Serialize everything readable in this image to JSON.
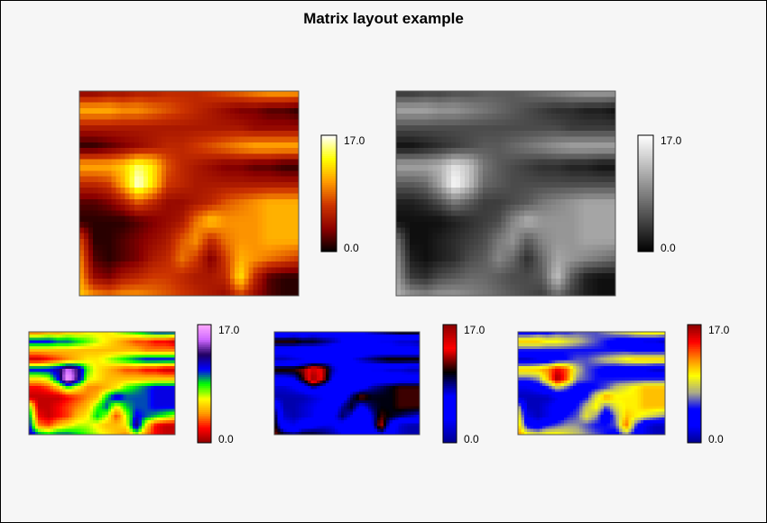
{
  "chart_data": {
    "type": "heatmap",
    "title": "Matrix layout example",
    "layout": "matrix, 2 panels top row, 3 panels bottom row",
    "value_range": [
      0,
      17
    ],
    "colorbar_ticks": [
      "17.0",
      "0.0"
    ],
    "matrix": [
      [
        3,
        3,
        4,
        4,
        5,
        5,
        6,
        6,
        6,
        7,
        8,
        9,
        10,
        11,
        11,
        11
      ],
      [
        11,
        11,
        11,
        10,
        10,
        9,
        8,
        7,
        6,
        5,
        4,
        3,
        3,
        2,
        2,
        1
      ],
      [
        5,
        5,
        5,
        5,
        5,
        5,
        5,
        5,
        5,
        5,
        5,
        5,
        4,
        4,
        4,
        4
      ],
      [
        1,
        1,
        2,
        3,
        4,
        5,
        6,
        6,
        7,
        8,
        9,
        10,
        11,
        11,
        11,
        11
      ],
      [
        11,
        11,
        11,
        12,
        15,
        13,
        8,
        6,
        5,
        4,
        3,
        3,
        2,
        2,
        1,
        1
      ],
      [
        6,
        6,
        7,
        11,
        17,
        13,
        7,
        6,
        5,
        5,
        5,
        5,
        5,
        5,
        5,
        5
      ],
      [
        2,
        2,
        3,
        5,
        8,
        6,
        4,
        4,
        5,
        6,
        8,
        9,
        10,
        11,
        11,
        11
      ],
      [
        1,
        1,
        1,
        1,
        2,
        3,
        4,
        5,
        9,
        12,
        10,
        10,
        10,
        11,
        11,
        11
      ],
      [
        8,
        1,
        1,
        2,
        3,
        4,
        5,
        8,
        10,
        6,
        9,
        10,
        10,
        11,
        11,
        11
      ],
      [
        10,
        2,
        1,
        2,
        3,
        5,
        6,
        9,
        7,
        3,
        7,
        11,
        10,
        9,
        8,
        7
      ],
      [
        11,
        4,
        3,
        5,
        6,
        7,
        7,
        6,
        5,
        5,
        6,
        13,
        6,
        2,
        1,
        1
      ],
      [
        12,
        10,
        9,
        10,
        10,
        9,
        8,
        7,
        6,
        5,
        4,
        7,
        4,
        2,
        1,
        1
      ]
    ],
    "panels": [
      {
        "colormap": "hot",
        "stops": [
          "#000000",
          "#8b0000",
          "#cc3300",
          "#ff9900",
          "#ffff00",
          "#ffffff"
        ]
      },
      {
        "colormap": "gray",
        "stops": [
          "#000000",
          "#ffffff"
        ]
      },
      {
        "colormap": "rainbow",
        "stops": [
          "#8b0000",
          "#ff0000",
          "#ff9900",
          "#ffff00",
          "#00ff00",
          "#0000ff",
          "#200060",
          "#cc66ff",
          "#ffaaff"
        ]
      },
      {
        "colormap": "blue-black-red",
        "stops": [
          "#00008b",
          "#0000ff",
          "#0000ff",
          "#000000",
          "#ff0000",
          "#8b0000"
        ]
      },
      {
        "colormap": "blue-yellow-red",
        "stops": [
          "#00008b",
          "#0000ff",
          "#0000ff",
          "#aaaa88",
          "#ffff00",
          "#ff8800",
          "#ff0000",
          "#8b0000"
        ]
      }
    ]
  }
}
